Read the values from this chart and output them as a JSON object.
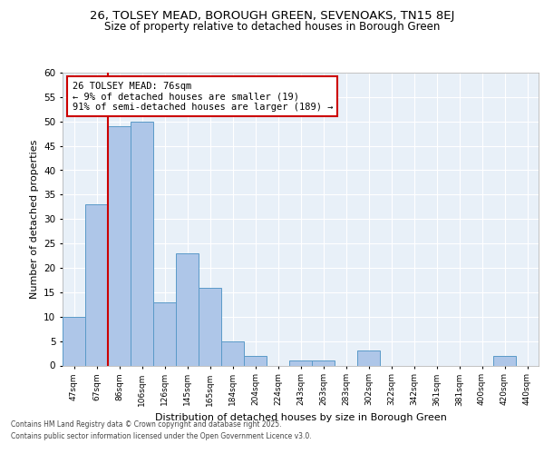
{
  "title1": "26, TOLSEY MEAD, BOROUGH GREEN, SEVENOAKS, TN15 8EJ",
  "title2": "Size of property relative to detached houses in Borough Green",
  "xlabel": "Distribution of detached houses by size in Borough Green",
  "ylabel": "Number of detached properties",
  "bin_labels": [
    "47sqm",
    "67sqm",
    "86sqm",
    "106sqm",
    "126sqm",
    "145sqm",
    "165sqm",
    "184sqm",
    "204sqm",
    "224sqm",
    "243sqm",
    "263sqm",
    "283sqm",
    "302sqm",
    "322sqm",
    "342sqm",
    "361sqm",
    "381sqm",
    "400sqm",
    "420sqm",
    "440sqm"
  ],
  "bar_values": [
    10,
    33,
    49,
    50,
    13,
    23,
    16,
    5,
    2,
    0,
    1,
    1,
    0,
    3,
    0,
    0,
    0,
    0,
    0,
    2,
    0
  ],
  "bar_color": "#aec6e8",
  "bar_edge_color": "#5a9ac8",
  "vline_x": 1.5,
  "vline_color": "#cc0000",
  "annotation_title": "26 TOLSEY MEAD: 76sqm",
  "annotation_line2": "← 9% of detached houses are smaller (19)",
  "annotation_line3": "91% of semi-detached houses are larger (189) →",
  "annotation_box_color": "#cc0000",
  "ylim": [
    0,
    60
  ],
  "yticks": [
    0,
    5,
    10,
    15,
    20,
    25,
    30,
    35,
    40,
    45,
    50,
    55,
    60
  ],
  "footer1": "Contains HM Land Registry data © Crown copyright and database right 2025.",
  "footer2": "Contains public sector information licensed under the Open Government Licence v3.0.",
  "bg_color": "#e8f0f8",
  "grid_color": "#ffffff"
}
